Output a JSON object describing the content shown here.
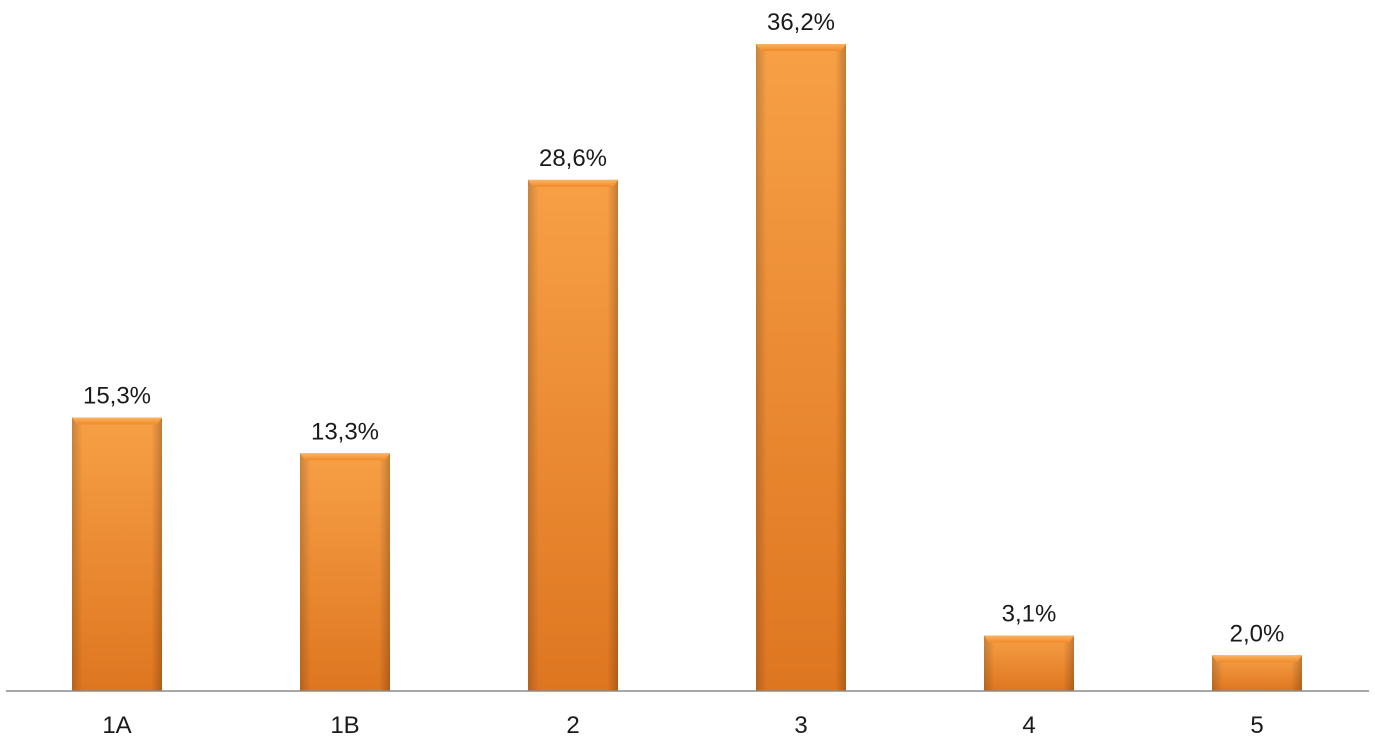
{
  "chart_data": {
    "type": "bar",
    "categories": [
      "1A",
      "1B",
      "2",
      "3",
      "4",
      "5"
    ],
    "values": [
      15.3,
      13.3,
      28.6,
      36.2,
      3.1,
      2.0
    ],
    "data_labels": [
      "15,3%",
      "13,3%",
      "28,6%",
      "36,2%",
      "3,1%",
      "2,0%"
    ],
    "title": "",
    "xlabel": "",
    "ylabel": "",
    "ylim": [
      0,
      36.2
    ],
    "grid": false,
    "legend": "none",
    "colors": {
      "bar_light": "#f7a046",
      "bar_main": "#f0892a",
      "bar_dark": "#d8701a",
      "axis": "#8c8c8c"
    }
  }
}
